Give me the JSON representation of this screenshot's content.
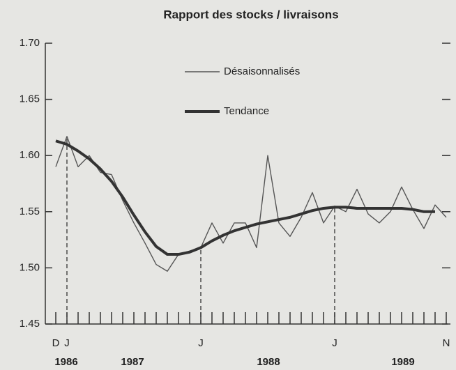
{
  "chart_data": {
    "type": "line",
    "title": "Rapport des stocks / livraisons",
    "categories": [
      "D",
      "J",
      null,
      null,
      null,
      null,
      null,
      null,
      null,
      null,
      null,
      null,
      null,
      "J",
      null,
      null,
      null,
      null,
      null,
      null,
      null,
      null,
      null,
      null,
      null,
      "J",
      null,
      null,
      null,
      null,
      null,
      null,
      null,
      null,
      null,
      "N"
    ],
    "year_labels": [
      "1986",
      "1987",
      "1988",
      "1989"
    ],
    "series": [
      {
        "name": "Désaisonnalisés",
        "color": "#555555",
        "values": [
          1.59,
          1.617,
          1.59,
          1.6,
          1.585,
          1.583,
          1.56,
          1.54,
          1.522,
          1.503,
          1.497,
          1.512,
          1.515,
          1.518,
          1.54,
          1.522,
          1.54,
          1.54,
          1.518,
          1.6,
          1.54,
          1.528,
          1.545,
          1.567,
          1.54,
          1.555,
          1.55,
          1.57,
          1.548,
          1.54,
          1.55,
          1.572,
          1.552,
          1.535,
          1.556,
          1.545
        ]
      },
      {
        "name": "Tendance",
        "color": "#333333",
        "values": [
          1.613,
          1.61,
          1.604,
          1.597,
          1.588,
          1.577,
          1.563,
          1.547,
          1.532,
          1.519,
          1.512,
          1.512,
          1.514,
          1.518,
          1.524,
          1.529,
          1.533,
          1.536,
          1.539,
          1.541,
          1.543,
          1.545,
          1.548,
          1.551,
          1.553,
          1.554,
          1.554,
          1.553,
          1.553,
          1.553,
          1.553,
          1.553,
          1.552,
          1.55,
          1.55,
          null
        ]
      }
    ],
    "ylim": [
      1.45,
      1.7
    ],
    "yticks": [
      {
        "value": 1.45,
        "label": "1.45"
      },
      {
        "value": 1.5,
        "label": "1.50"
      },
      1.55,
      {
        "value": 1.6,
        "label": "1.60"
      },
      1.65,
      {
        "value": 1.7,
        "label": "1.70"
      }
    ],
    "legend": "upper center"
  }
}
